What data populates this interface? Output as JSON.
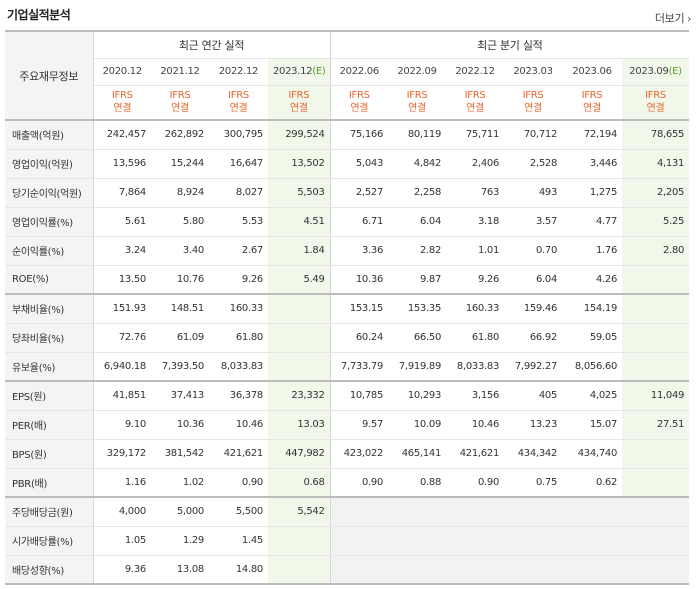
{
  "header": {
    "title": "기업실적분석",
    "more_label": "더보기",
    "more_chevron": "›"
  },
  "table": {
    "side_header": "주요재무정보",
    "annual_header": "최근 연간 실적",
    "quarter_header": "최근 분기 실적",
    "annual_periods": [
      "2020.12",
      "2021.12",
      "2022.12",
      "2023.12"
    ],
    "annual_est_mark": "(E)",
    "quarter_periods": [
      "2022.06",
      "2022.09",
      "2022.12",
      "2023.03",
      "2023.06",
      "2023.09"
    ],
    "quarter_est_mark": "(E)",
    "ifrs_top": "IFRS",
    "ifrs_bottom": "연결",
    "rows": [
      {
        "label": "매출액(억원)",
        "annual": [
          "242,457",
          "262,892",
          "300,795",
          "299,524"
        ],
        "quarter": [
          "75,166",
          "80,119",
          "75,711",
          "70,712",
          "72,194",
          "78,655"
        ]
      },
      {
        "label": "영업이익(억원)",
        "annual": [
          "13,596",
          "15,244",
          "16,647",
          "13,502"
        ],
        "quarter": [
          "5,043",
          "4,842",
          "2,406",
          "2,528",
          "3,446",
          "4,131"
        ]
      },
      {
        "label": "당기순이익(억원)",
        "annual": [
          "7,864",
          "8,924",
          "8,027",
          "5,503"
        ],
        "quarter": [
          "2,527",
          "2,258",
          "763",
          "493",
          "1,275",
          "2,205"
        ]
      },
      {
        "label": "영업이익률(%)",
        "annual": [
          "5.61",
          "5.80",
          "5.53",
          "4.51"
        ],
        "quarter": [
          "6.71",
          "6.04",
          "3.18",
          "3.57",
          "4.77",
          "5.25"
        ]
      },
      {
        "label": "순이익률(%)",
        "annual": [
          "3.24",
          "3.40",
          "2.67",
          "1.84"
        ],
        "quarter": [
          "3.36",
          "2.82",
          "1.01",
          "0.70",
          "1.76",
          "2.80"
        ]
      },
      {
        "label": "ROE(%)",
        "annual": [
          "13.50",
          "10.76",
          "9.26",
          "5.49"
        ],
        "quarter": [
          "10.36",
          "9.87",
          "9.26",
          "6.04",
          "4.26",
          ""
        ]
      },
      {
        "label": "부채비율(%)",
        "annual": [
          "151.93",
          "148.51",
          "160.33",
          ""
        ],
        "quarter": [
          "153.15",
          "153.35",
          "160.33",
          "159.46",
          "154.19",
          ""
        ]
      },
      {
        "label": "당좌비율(%)",
        "annual": [
          "72.76",
          "61.09",
          "61.80",
          ""
        ],
        "quarter": [
          "60.24",
          "66.50",
          "61.80",
          "66.92",
          "59.05",
          ""
        ]
      },
      {
        "label": "유보율(%)",
        "annual": [
          "6,940.18",
          "7,393.50",
          "8,033.83",
          ""
        ],
        "quarter": [
          "7,733.79",
          "7,919.89",
          "8,033.83",
          "7,992.27",
          "8,056.60",
          ""
        ]
      },
      {
        "label": "EPS(원)",
        "annual": [
          "41,851",
          "37,413",
          "36,378",
          "23,332"
        ],
        "quarter": [
          "10,785",
          "10,293",
          "3,156",
          "405",
          "4,025",
          "11,049"
        ]
      },
      {
        "label": "PER(배)",
        "annual": [
          "9.10",
          "10.36",
          "10.46",
          "13.03"
        ],
        "quarter": [
          "9.57",
          "10.09",
          "10.46",
          "13.23",
          "15.07",
          "27.51"
        ]
      },
      {
        "label": "BPS(원)",
        "annual": [
          "329,172",
          "381,542",
          "421,621",
          "447,982"
        ],
        "quarter": [
          "423,022",
          "465,141",
          "421,621",
          "434,342",
          "434,740",
          ""
        ]
      },
      {
        "label": "PBR(배)",
        "annual": [
          "1.16",
          "1.02",
          "0.90",
          "0.68"
        ],
        "quarter": [
          "0.90",
          "0.88",
          "0.90",
          "0.75",
          "0.62",
          ""
        ]
      },
      {
        "label": "주당배당금(원)",
        "annual": [
          "4,000",
          "5,000",
          "5,500",
          "5,542"
        ],
        "quarter": [
          "",
          "",
          "",
          "",
          "",
          ""
        ]
      },
      {
        "label": "시가배당률(%)",
        "annual": [
          "1.05",
          "1.29",
          "1.45",
          ""
        ],
        "quarter": [
          "",
          "",
          "",
          "",
          "",
          ""
        ]
      },
      {
        "label": "배당성향(%)",
        "annual": [
          "9.36",
          "13.08",
          "14.80",
          ""
        ],
        "quarter": [
          "",
          "",
          "",
          "",
          "",
          ""
        ]
      }
    ]
  },
  "colors": {
    "ifrs": "#e8652e",
    "estimate_bg": "#f1f8ea",
    "estimate_mark": "#5a9e2e",
    "label_bg": "#f4f4f4",
    "empty_bg": "#f2f2f2"
  }
}
